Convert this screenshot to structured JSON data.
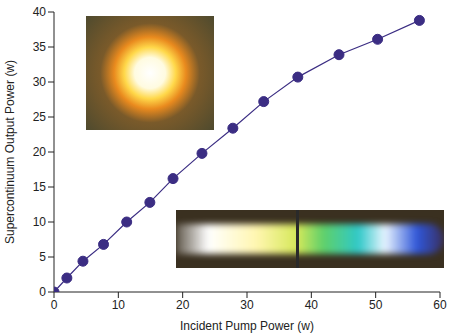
{
  "chart_data": {
    "type": "line",
    "x_label": "Incident Pump Power (w)",
    "y_label": "Supercontinuum Output Power (w)",
    "x": [
      0,
      2,
      4.5,
      7.7,
      11.3,
      14.9,
      18.5,
      23,
      27.8,
      32.6,
      37.9,
      44.3,
      50.3,
      56.8
    ],
    "values": [
      0,
      2,
      4.4,
      6.8,
      10,
      12.8,
      16.2,
      19.8,
      23.4,
      27.2,
      30.7,
      33.9,
      36.1,
      38.8
    ],
    "xlim": [
      0,
      60
    ],
    "ylim": [
      0,
      40
    ],
    "xticks": [
      0,
      10,
      20,
      30,
      40,
      50,
      60
    ],
    "yticks": [
      0,
      5,
      10,
      15,
      20,
      25,
      30,
      35,
      40
    ],
    "color": "#3b2d83",
    "marker": "circle",
    "grid": false
  }
}
